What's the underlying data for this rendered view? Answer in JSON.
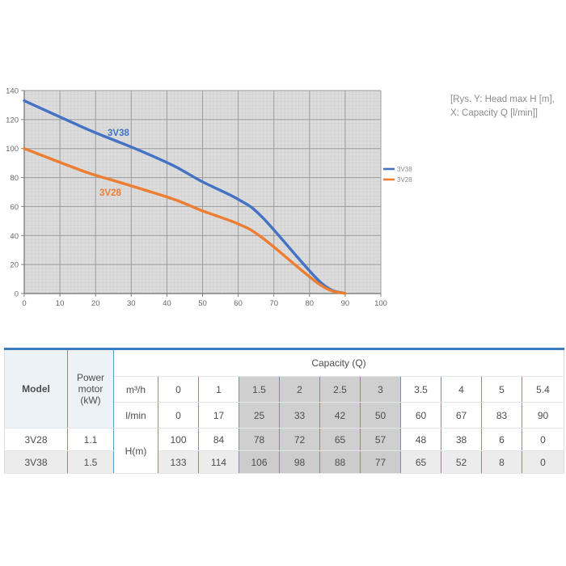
{
  "annotation": {
    "lines": [
      "[Rys. Y: Head max H [m],",
      "X: Capacity Q [l/min]]"
    ]
  },
  "colors": {
    "series_3V38": "#4472c4",
    "series_3V28": "#ed7d31",
    "plot_background": "#dcdcdc",
    "minor_grid": "#c9c9c9",
    "major_grid": "#9b9b9b",
    "axis": "#808080",
    "tick_label": "#666666",
    "legend_text": "#8a8a8a",
    "table_top_border": "#3a7cbf",
    "table_cell_border": "#5d9ab3",
    "shaded_column": "#cfcfcf",
    "header_cell_bg": "#edf2f7",
    "alt_row_bg": "#ececec"
  },
  "chart_data": {
    "type": "line",
    "title": "",
    "xlabel": "Capacity Q [l/min]",
    "ylabel": "Head max H [m]",
    "xlim": [
      0,
      100
    ],
    "ylim": [
      0,
      140
    ],
    "x_ticks": [
      0,
      10,
      20,
      30,
      40,
      50,
      60,
      70,
      80,
      90,
      100
    ],
    "y_ticks": [
      0,
      20,
      40,
      60,
      80,
      100,
      120,
      140
    ],
    "grid": "minor+major",
    "legend_position": "right",
    "x": [
      0,
      17,
      25,
      33,
      42,
      50,
      60,
      67,
      83,
      90
    ],
    "series": [
      {
        "name": "3V38",
        "color": "#4472c4",
        "values": [
          133,
          114,
          106,
          98,
          88,
          77,
          65,
          52,
          8,
          0
        ]
      },
      {
        "name": "3V28",
        "color": "#ed7d31",
        "values": [
          100,
          84,
          78,
          72,
          65,
          57,
          48,
          38,
          6,
          0
        ]
      }
    ]
  },
  "table": {
    "model_header": "Model",
    "power_header": "Power motor (kW)",
    "capacity_header": "Capacity (Q)",
    "h_label": "H(m)",
    "unit_rows": [
      {
        "label": "m³/h",
        "values": [
          "0",
          "1",
          "1.5",
          "2",
          "2.5",
          "3",
          "3.5",
          "4",
          "5",
          "5.4"
        ]
      },
      {
        "label": "l/min",
        "values": [
          "0",
          "17",
          "25",
          "33",
          "42",
          "50",
          "60",
          "67",
          "83",
          "90"
        ]
      }
    ],
    "rows": [
      {
        "model": "3V28",
        "power": "1.1",
        "values": [
          "100",
          "84",
          "78",
          "72",
          "65",
          "57",
          "48",
          "38",
          "6",
          "0"
        ]
      },
      {
        "model": "3V38",
        "power": "1.5",
        "values": [
          "133",
          "114",
          "106",
          "98",
          "88",
          "77",
          "65",
          "52",
          "8",
          "0"
        ]
      }
    ],
    "shaded_value_cols": [
      2,
      3,
      4,
      5
    ]
  }
}
